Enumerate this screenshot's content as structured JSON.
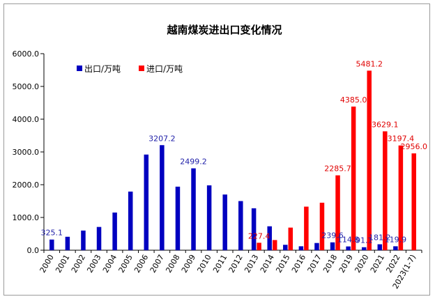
{
  "chart_data": {
    "type": "bar",
    "title": "越南煤炭进出口变化情况",
    "xlabel": "",
    "ylabel": "",
    "ylim": [
      0,
      6000
    ],
    "yticks": [
      "0.0",
      "1000.0",
      "2000.0",
      "3000.0",
      "4000.0",
      "5000.0",
      "6000.0"
    ],
    "grid": false,
    "legend_position": "top-left",
    "categories": [
      "2000",
      "2001",
      "2002",
      "2003",
      "2004",
      "2005",
      "2006",
      "2007",
      "2008",
      "2009",
      "2010",
      "2011",
      "2012",
      "2013",
      "2014",
      "2015",
      "2016",
      "2017",
      "2018",
      "2019",
      "2020",
      "2021",
      "2022",
      "2023(1-7)"
    ],
    "series": [
      {
        "name": "出口/万吨",
        "color": "#0000c0",
        "values": [
          325.1,
          410,
          600,
          710,
          1150,
          1790,
          2920,
          3207.2,
          1940,
          2499.2,
          1980,
          1700,
          1500,
          1280,
          730,
          165,
          120,
          220,
          239.6,
          114.8,
          91.1,
          181.2,
          119.9,
          null
        ],
        "labels": [
          "325.1",
          "",
          "",
          "",
          "",
          "",
          "",
          "3207.2",
          "",
          "2499.2",
          "",
          "",
          "",
          "",
          "",
          "",
          "",
          "",
          "239.6",
          "114.8",
          "91.1",
          "181.2",
          "119.9",
          ""
        ]
      },
      {
        "name": "进口/万吨",
        "color": "#ff0000",
        "values": [
          null,
          null,
          null,
          null,
          null,
          null,
          null,
          null,
          null,
          null,
          null,
          null,
          null,
          227.4,
          310,
          690,
          1330,
          1450,
          2285.7,
          4385.0,
          5481.2,
          3629.1,
          3197.4,
          2956.0
        ],
        "labels": [
          "",
          "",
          "",
          "",
          "",
          "",
          "",
          "",
          "",
          "",
          "",
          "",
          "",
          "227.4",
          "",
          "",
          "",
          "",
          "2285.7",
          "4385.0",
          "5481.2",
          "3629.1",
          "3197.4",
          "2956.0"
        ]
      }
    ]
  }
}
